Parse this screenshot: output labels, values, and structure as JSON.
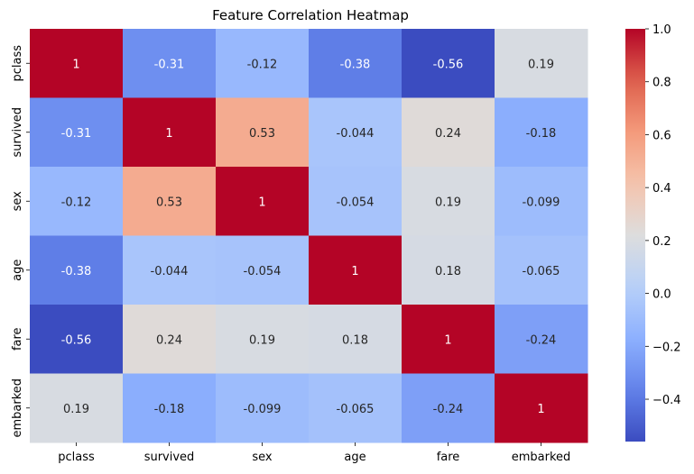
{
  "chart_data": {
    "type": "heatmap",
    "title": "Feature Correlation Heatmap",
    "xlabel": "",
    "ylabel": "",
    "x_categories": [
      "pclass",
      "survived",
      "sex",
      "age",
      "fare",
      "embarked"
    ],
    "y_categories": [
      "pclass",
      "survived",
      "sex",
      "age",
      "fare",
      "embarked"
    ],
    "values": [
      [
        1,
        -0.31,
        -0.12,
        -0.38,
        -0.56,
        0.19
      ],
      [
        -0.31,
        1,
        0.53,
        -0.044,
        0.24,
        -0.18
      ],
      [
        -0.12,
        0.53,
        1,
        -0.054,
        0.19,
        -0.099
      ],
      [
        -0.38,
        -0.044,
        -0.054,
        1,
        0.18,
        -0.065
      ],
      [
        -0.56,
        0.24,
        0.19,
        0.18,
        1,
        -0.24
      ],
      [
        0.19,
        -0.18,
        -0.099,
        -0.065,
        -0.24,
        1
      ]
    ],
    "annotations": [
      [
        "1",
        "-0.31",
        "-0.12",
        "-0.38",
        "-0.56",
        "0.19"
      ],
      [
        "-0.31",
        "1",
        "0.53",
        "-0.044",
        "0.24",
        "-0.18"
      ],
      [
        "-0.12",
        "0.53",
        "1",
        "-0.054",
        "0.19",
        "-0.099"
      ],
      [
        "-0.38",
        "-0.044",
        "-0.054",
        "1",
        "0.18",
        "-0.065"
      ],
      [
        "-0.56",
        "0.24",
        "0.19",
        "0.18",
        "1",
        "-0.24"
      ],
      [
        "0.19",
        "-0.18",
        "-0.099",
        "-0.065",
        "-0.24",
        "1"
      ]
    ],
    "colormap": "coolwarm",
    "colorbar": {
      "min": -0.56,
      "max": 1.0,
      "ticks": [
        1.0,
        0.8,
        0.6,
        0.4,
        0.2,
        0.0,
        -0.2,
        -0.4
      ],
      "tick_labels": [
        "1.0",
        "0.8",
        "0.6",
        "0.4",
        "0.2",
        "0.0",
        "−0.2",
        "−0.4"
      ]
    }
  }
}
